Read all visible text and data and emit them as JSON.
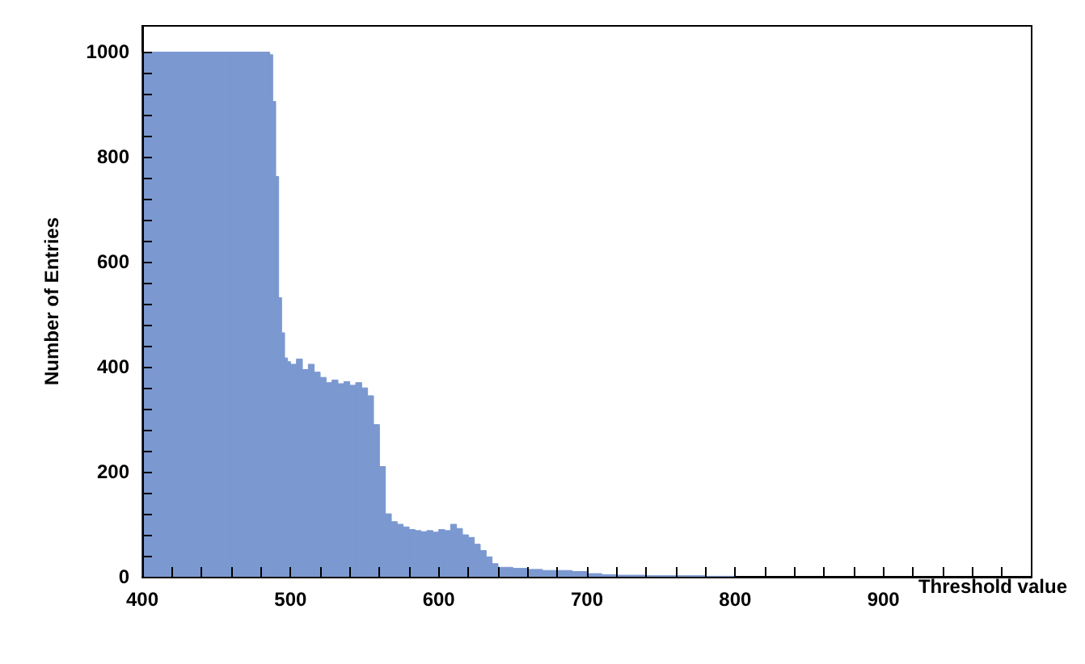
{
  "chart_data": {
    "type": "histogram",
    "xlabel": "Threshold value",
    "ylabel": "Number of Entries",
    "color": "#7b98d0",
    "bins": [
      400,
      410,
      420,
      430,
      440,
      450,
      460,
      470,
      480,
      486,
      488,
      490,
      492,
      494,
      496,
      498,
      500,
      504,
      508,
      512,
      516,
      520,
      524,
      528,
      532,
      536,
      540,
      544,
      548,
      552,
      556,
      560,
      564,
      568,
      572,
      576,
      580,
      584,
      588,
      592,
      596,
      600,
      604,
      608,
      612,
      616,
      620,
      624,
      628,
      632,
      636,
      640,
      650,
      660,
      670,
      680,
      690,
      700,
      710,
      720,
      740,
      760,
      780,
      800
    ],
    "values": [
      1000,
      1000,
      1000,
      1000,
      1000,
      1000,
      1000,
      1000,
      1000,
      995,
      906,
      763,
      532,
      465,
      417,
      410,
      405,
      415,
      395,
      405,
      390,
      380,
      370,
      375,
      368,
      372,
      365,
      370,
      360,
      345,
      290,
      210,
      120,
      105,
      100,
      95,
      90,
      88,
      86,
      88,
      85,
      90,
      88,
      100,
      92,
      80,
      75,
      62,
      50,
      38,
      25,
      18,
      16,
      14,
      12,
      12,
      10,
      6,
      4,
      3,
      2,
      2,
      1
    ],
    "xlim": [
      400,
      1000
    ],
    "ylim": [
      0,
      1050
    ],
    "xticks": [
      400,
      {
        "value": 420,
        "label": null
      },
      {
        "value": 440,
        "label": null
      },
      {
        "value": 460,
        "label": null
      },
      {
        "value": 480,
        "label": null
      },
      500,
      {
        "value": 520,
        "label": null
      },
      {
        "value": 540,
        "label": null
      },
      {
        "value": 560,
        "label": null
      },
      {
        "value": 580,
        "label": null
      },
      600,
      {
        "value": 620,
        "label": null
      },
      {
        "value": 640,
        "label": null
      },
      {
        "value": 660,
        "label": null
      },
      {
        "value": 680,
        "label": null
      },
      700,
      {
        "value": 720,
        "label": null
      },
      {
        "value": 740,
        "label": null
      },
      {
        "value": 760,
        "label": null
      },
      {
        "value": 780,
        "label": null
      },
      800,
      {
        "value": 820,
        "label": null
      },
      {
        "value": 840,
        "label": null
      },
      {
        "value": 860,
        "label": null
      },
      {
        "value": 880,
        "label": null
      },
      900,
      {
        "value": 920,
        "label": null
      },
      {
        "value": 940,
        "label": null
      },
      {
        "value": 960,
        "label": null
      },
      {
        "value": 980,
        "label": null
      }
    ],
    "yticks": [
      0,
      {
        "value": 40,
        "label": null
      },
      {
        "value": 80,
        "label": null
      },
      {
        "value": 120,
        "label": null
      },
      {
        "value": 160,
        "label": null
      },
      200,
      {
        "value": 240,
        "label": null
      },
      {
        "value": 280,
        "label": null
      },
      {
        "value": 320,
        "label": null
      },
      {
        "value": 360,
        "label": null
      },
      400,
      {
        "value": 440,
        "label": null
      },
      {
        "value": 480,
        "label": null
      },
      {
        "value": 520,
        "label": null
      },
      {
        "value": 560,
        "label": null
      },
      600,
      {
        "value": 640,
        "label": null
      },
      {
        "value": 680,
        "label": null
      },
      {
        "value": 720,
        "label": null
      },
      {
        "value": 760,
        "label": null
      },
      800,
      {
        "value": 840,
        "label": null
      },
      {
        "value": 880,
        "label": null
      },
      {
        "value": 920,
        "label": null
      },
      {
        "value": 960,
        "label": null
      },
      1000
    ],
    "grid": false
  }
}
